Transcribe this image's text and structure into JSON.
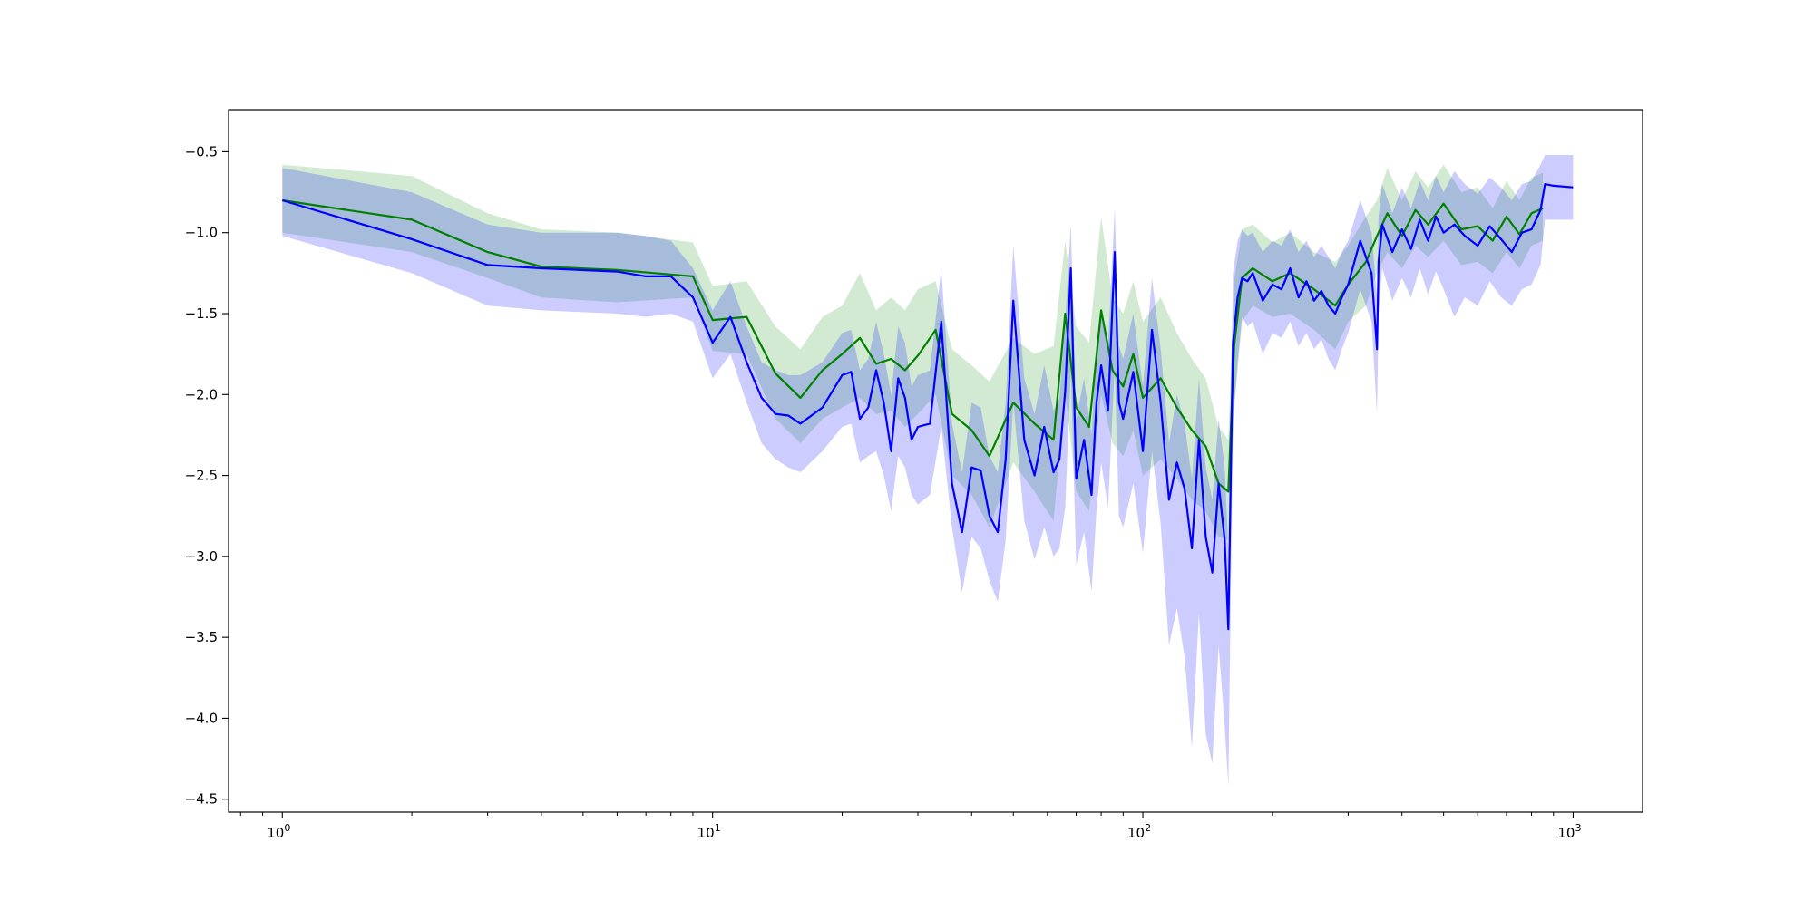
{
  "chart_data": {
    "type": "line",
    "title": "",
    "xlabel": "",
    "ylabel": "",
    "xscale": "log",
    "xlim": [
      0.75,
      1450
    ],
    "ylim": [
      -4.58,
      -0.24
    ],
    "grid": false,
    "legend": "none",
    "x_ticks": [
      {
        "value": 1,
        "base": "10",
        "exp": "0"
      },
      {
        "value": 10,
        "base": "10",
        "exp": "1"
      },
      {
        "value": 100,
        "base": "10",
        "exp": "2"
      },
      {
        "value": 1000,
        "base": "10",
        "exp": "3"
      }
    ],
    "y_ticks": [
      {
        "value": -0.5,
        "label": "−0.5"
      },
      {
        "value": -1.0,
        "label": "−1.0"
      },
      {
        "value": -1.5,
        "label": "−1.5"
      },
      {
        "value": -2.0,
        "label": "−2.0"
      },
      {
        "value": -2.5,
        "label": "−2.5"
      },
      {
        "value": -3.0,
        "label": "−3.0"
      },
      {
        "value": -3.5,
        "label": "−3.5"
      },
      {
        "value": -4.0,
        "label": "−4.0"
      },
      {
        "value": -4.5,
        "label": "−4.5"
      }
    ],
    "series": [
      {
        "color": "#008000",
        "band_color": "#2ca02c",
        "band_opacity": 0.22,
        "x": [
          1,
          2,
          3,
          4,
          6,
          9,
          10,
          12,
          14,
          16,
          18,
          20,
          22,
          24,
          26,
          28,
          30,
          33,
          36,
          40,
          44,
          50,
          56,
          62,
          66,
          70,
          75,
          80,
          85,
          90,
          95,
          100,
          110,
          120,
          130,
          140,
          150,
          158,
          163,
          170,
          180,
          200,
          220,
          250,
          280,
          300,
          330,
          350,
          370,
          400,
          430,
          460,
          500,
          550,
          600,
          650,
          700,
          750,
          800,
          850
        ],
        "y": [
          -0.8,
          -0.92,
          -1.12,
          -1.21,
          -1.23,
          -1.27,
          -1.54,
          -1.52,
          -1.87,
          -2.02,
          -1.85,
          -1.75,
          -1.65,
          -1.81,
          -1.78,
          -1.85,
          -1.76,
          -1.6,
          -2.12,
          -2.22,
          -2.38,
          -2.05,
          -2.18,
          -2.28,
          -1.5,
          -2.08,
          -2.2,
          -1.48,
          -1.85,
          -1.95,
          -1.75,
          -2.02,
          -1.9,
          -2.08,
          -2.22,
          -2.32,
          -2.55,
          -2.6,
          -1.7,
          -1.28,
          -1.22,
          -1.3,
          -1.25,
          -1.35,
          -1.45,
          -1.32,
          -1.18,
          -1.02,
          -0.88,
          -1.02,
          -0.86,
          -0.95,
          -0.82,
          -0.98,
          -0.96,
          -1.05,
          -0.9,
          -1.01,
          -0.88,
          -0.85
        ],
        "lower": [
          -1.0,
          -1.12,
          -1.28,
          -1.4,
          -1.43,
          -1.4,
          -1.73,
          -1.75,
          -2.15,
          -2.3,
          -2.15,
          -2.08,
          -2.02,
          -2.12,
          -2.1,
          -2.2,
          -2.12,
          -2.0,
          -2.5,
          -2.62,
          -2.82,
          -2.42,
          -2.6,
          -2.78,
          -1.98,
          -2.6,
          -2.72,
          -2.0,
          -2.3,
          -2.38,
          -2.22,
          -2.5,
          -2.4,
          -2.52,
          -2.65,
          -2.72,
          -2.88,
          -2.9,
          -2.1,
          -1.55,
          -1.45,
          -1.52,
          -1.5,
          -1.6,
          -1.72,
          -1.55,
          -1.45,
          -1.25,
          -1.12,
          -1.22,
          -1.08,
          -1.15,
          -1.05,
          -1.2,
          -1.18,
          -1.25,
          -1.12,
          -1.22,
          -1.08,
          -1.05
        ],
        "upper": [
          -0.58,
          -0.65,
          -0.88,
          -0.98,
          -1.0,
          -1.06,
          -1.33,
          -1.3,
          -1.58,
          -1.72,
          -1.52,
          -1.45,
          -1.25,
          -1.48,
          -1.4,
          -1.48,
          -1.35,
          -1.3,
          -1.72,
          -1.82,
          -1.92,
          -1.65,
          -1.75,
          -1.7,
          -1.05,
          -1.58,
          -1.68,
          -0.9,
          -1.4,
          -1.5,
          -1.3,
          -1.55,
          -1.4,
          -1.62,
          -1.78,
          -1.9,
          -2.2,
          -2.28,
          -1.3,
          -0.98,
          -0.95,
          -1.06,
          -1.0,
          -1.12,
          -1.18,
          -1.08,
          -0.9,
          -0.8,
          -0.6,
          -0.8,
          -0.62,
          -0.72,
          -0.58,
          -0.75,
          -0.72,
          -0.85,
          -0.68,
          -0.8,
          -0.66,
          -0.63
        ]
      },
      {
        "color": "#0000ff",
        "band_color": "#0000ff",
        "band_opacity": 0.2,
        "x": [
          1,
          2,
          3,
          4,
          6,
          7,
          8,
          9,
          10,
          11,
          12,
          13,
          14,
          15,
          16,
          18,
          20,
          21,
          22,
          23,
          24,
          25,
          26,
          27,
          28,
          29,
          30,
          32,
          34,
          36,
          38,
          40,
          42,
          44,
          46,
          48,
          50,
          53,
          56,
          59,
          62,
          64,
          66,
          68,
          70,
          73,
          76,
          78,
          80,
          83,
          86,
          88,
          90,
          95,
          100,
          105,
          110,
          115,
          120,
          125,
          130,
          135,
          140,
          145,
          150,
          155,
          158,
          162,
          166,
          170,
          175,
          180,
          190,
          200,
          210,
          220,
          230,
          240,
          250,
          260,
          270,
          280,
          290,
          300,
          320,
          340,
          350,
          353,
          360,
          380,
          400,
          420,
          440,
          460,
          480,
          500,
          530,
          560,
          600,
          640,
          680,
          720,
          760,
          800,
          840,
          860,
          900,
          1000
        ],
        "y": [
          -0.8,
          -1.04,
          -1.2,
          -1.22,
          -1.24,
          -1.27,
          -1.27,
          -1.4,
          -1.68,
          -1.52,
          -1.8,
          -2.02,
          -2.12,
          -2.13,
          -2.18,
          -2.08,
          -1.88,
          -1.86,
          -2.15,
          -2.08,
          -1.85,
          -2.05,
          -2.35,
          -1.9,
          -2.02,
          -2.28,
          -2.2,
          -2.18,
          -1.55,
          -2.55,
          -2.85,
          -2.45,
          -2.47,
          -2.75,
          -2.85,
          -2.4,
          -1.42,
          -2.28,
          -2.5,
          -2.2,
          -2.48,
          -2.4,
          -1.98,
          -1.22,
          -2.52,
          -2.28,
          -2.62,
          -2.05,
          -1.82,
          -2.1,
          -1.12,
          -2.05,
          -2.15,
          -1.86,
          -2.35,
          -1.6,
          -2.05,
          -2.65,
          -2.42,
          -2.58,
          -2.95,
          -2.28,
          -2.88,
          -3.1,
          -2.55,
          -2.9,
          -3.45,
          -1.68,
          -1.4,
          -1.28,
          -1.3,
          -1.25,
          -1.42,
          -1.32,
          -1.35,
          -1.22,
          -1.4,
          -1.3,
          -1.42,
          -1.36,
          -1.45,
          -1.5,
          -1.4,
          -1.32,
          -1.05,
          -1.25,
          -1.72,
          -1.18,
          -0.95,
          -1.12,
          -0.98,
          -1.1,
          -0.92,
          -1.05,
          -0.9,
          -1.0,
          -0.95,
          -1.02,
          -1.08,
          -0.96,
          -1.04,
          -1.12,
          -1.0,
          -0.98,
          -0.86,
          -0.7,
          -0.71,
          -0.72
        ],
        "lower": [
          -1.02,
          -1.25,
          -1.45,
          -1.48,
          -1.5,
          -1.52,
          -1.5,
          -1.55,
          -1.9,
          -1.75,
          -2.05,
          -2.3,
          -2.4,
          -2.45,
          -2.48,
          -2.35,
          -2.2,
          -2.18,
          -2.42,
          -2.38,
          -2.35,
          -2.5,
          -2.72,
          -2.38,
          -2.45,
          -2.62,
          -2.68,
          -2.62,
          -2.2,
          -2.82,
          -3.22,
          -2.88,
          -2.95,
          -3.15,
          -3.28,
          -2.9,
          -2.05,
          -2.78,
          -3.02,
          -2.82,
          -3.0,
          -2.95,
          -2.7,
          -1.85,
          -3.05,
          -2.85,
          -3.22,
          -2.72,
          -2.42,
          -2.7,
          -1.82,
          -2.75,
          -2.82,
          -2.55,
          -2.98,
          -2.35,
          -2.8,
          -3.55,
          -3.32,
          -3.62,
          -4.18,
          -3.35,
          -4.1,
          -4.28,
          -3.55,
          -4.05,
          -4.42,
          -2.15,
          -1.8,
          -1.52,
          -1.58,
          -1.55,
          -1.75,
          -1.62,
          -1.65,
          -1.55,
          -1.7,
          -1.62,
          -1.72,
          -1.66,
          -1.78,
          -1.85,
          -1.72,
          -1.62,
          -1.35,
          -1.55,
          -2.12,
          -1.5,
          -1.22,
          -1.42,
          -1.28,
          -1.4,
          -1.22,
          -1.38,
          -1.24,
          -1.35,
          -1.52,
          -1.4,
          -1.45,
          -1.3,
          -1.4,
          -1.45,
          -1.35,
          -1.32,
          -1.2,
          -0.92,
          -0.92,
          -0.92
        ],
        "upper": [
          -0.6,
          -0.75,
          -0.95,
          -1.0,
          -1.0,
          -1.02,
          -1.05,
          -1.22,
          -1.48,
          -1.3,
          -1.58,
          -1.8,
          -1.85,
          -1.88,
          -1.88,
          -1.8,
          -1.62,
          -1.6,
          -1.85,
          -1.78,
          -1.55,
          -1.75,
          -2.0,
          -1.58,
          -1.68,
          -1.95,
          -1.88,
          -1.85,
          -1.22,
          -2.18,
          -2.48,
          -2.05,
          -2.08,
          -2.38,
          -2.48,
          -2.05,
          -1.08,
          -1.9,
          -2.12,
          -1.82,
          -2.1,
          -2.02,
          -1.55,
          -0.95,
          -2.15,
          -1.9,
          -2.25,
          -1.68,
          -1.48,
          -1.7,
          -0.85,
          -1.7,
          -1.78,
          -1.5,
          -1.95,
          -1.28,
          -1.72,
          -2.3,
          -2.0,
          -2.18,
          -2.52,
          -1.9,
          -2.45,
          -2.65,
          -2.15,
          -2.45,
          -2.95,
          -1.25,
          -1.05,
          -0.98,
          -1.02,
          -1.0,
          -1.12,
          -1.05,
          -1.08,
          -0.98,
          -1.12,
          -1.05,
          -1.15,
          -1.08,
          -1.15,
          -1.22,
          -1.12,
          -1.05,
          -0.8,
          -1.0,
          -1.4,
          -0.9,
          -0.7,
          -0.88,
          -0.72,
          -0.85,
          -0.68,
          -0.8,
          -0.65,
          -0.75,
          -0.62,
          -0.7,
          -0.76,
          -0.66,
          -0.72,
          -0.8,
          -0.7,
          -0.68,
          -0.58,
          -0.52,
          -0.52,
          -0.52
        ]
      }
    ]
  }
}
